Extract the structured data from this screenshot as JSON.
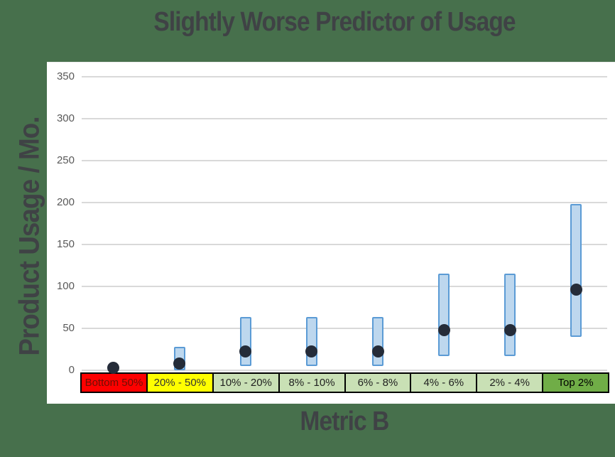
{
  "title": "Slightly Worse Predictor of Usage",
  "y_axis": {
    "label": "Product Usage / Mo.",
    "ticks": [
      0,
      50,
      100,
      150,
      200,
      250,
      300,
      350
    ]
  },
  "x_axis": {
    "label": "Metric B"
  },
  "chart_data": {
    "type": "bar",
    "subtype": "floating-range-bars-with-median-dots",
    "title": "Slightly Worse Predictor of Usage",
    "xlabel": "Metric B",
    "ylabel": "Product Usage / Mo.",
    "ylim": [
      0,
      350
    ],
    "grid": true,
    "legend": "none",
    "categories": [
      {
        "label": "Bottom 50%",
        "cell_bg": "#FE0000",
        "cell_text": "#6B1005",
        "bar_low": null,
        "bar_high": null,
        "dot": 3
      },
      {
        "label": "20% - 50%",
        "cell_bg": "#FFFF00",
        "cell_text": "#333333",
        "bar_low": 0,
        "bar_high": 28,
        "dot": 8
      },
      {
        "label": "10% - 20%",
        "cell_bg": "#C9E0B5",
        "cell_text": "#1F1F1F",
        "bar_low": 5,
        "bar_high": 64,
        "dot": 23
      },
      {
        "label": "8% - 10%",
        "cell_bg": "#C9E0B5",
        "cell_text": "#1F1F1F",
        "bar_low": 5,
        "bar_high": 64,
        "dot": 23
      },
      {
        "label": "6% - 8%",
        "cell_bg": "#C9E0B5",
        "cell_text": "#1F1F1F",
        "bar_low": 5,
        "bar_high": 64,
        "dot": 23
      },
      {
        "label": "4% - 6%",
        "cell_bg": "#C9E0B5",
        "cell_text": "#1F1F1F",
        "bar_low": 17,
        "bar_high": 115,
        "dot": 48
      },
      {
        "label": "2% - 4%",
        "cell_bg": "#C9E0B5",
        "cell_text": "#1F1F1F",
        "bar_low": 17,
        "bar_high": 115,
        "dot": 48
      },
      {
        "label": "Top 2%",
        "cell_bg": "#70AD47",
        "cell_text": "#000000",
        "bar_low": 40,
        "bar_high": 198,
        "dot": 96
      }
    ]
  },
  "colors": {
    "background": "#47704C",
    "plot_background": "#FFFFFF",
    "gridline": "#D9D9D9",
    "axis_text": "#595959",
    "title_text": "#3F4245",
    "bar_fill": "#BDD7EE",
    "bar_border": "#5B9BD5",
    "dot": "#252C39",
    "cell_border": "#000000"
  }
}
